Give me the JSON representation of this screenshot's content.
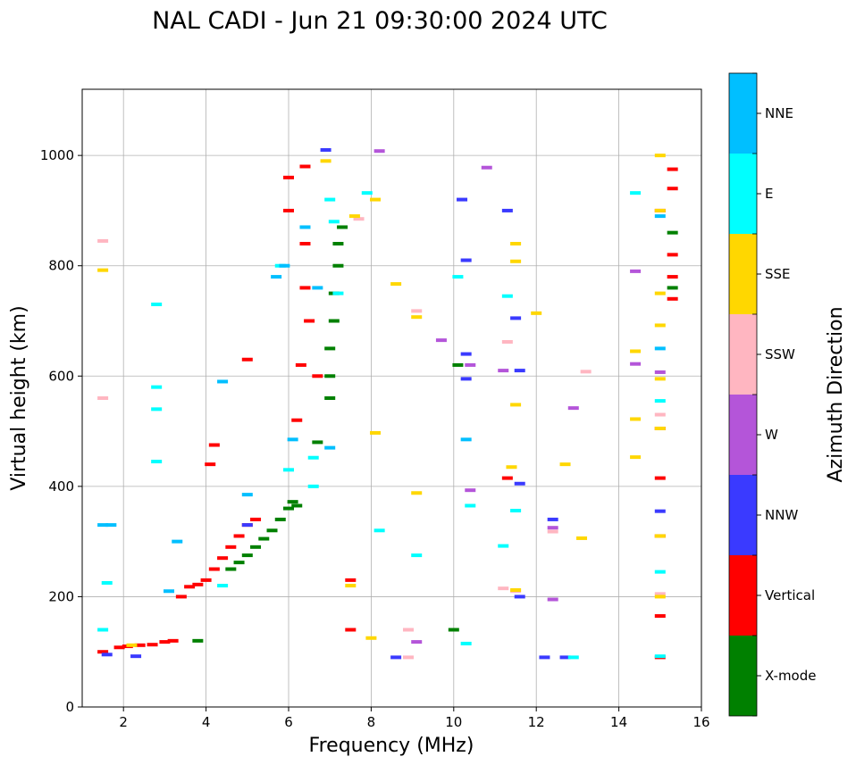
{
  "title": "NAL CADI - Jun 21 09:30:00 2024 UTC",
  "chart_data": {
    "type": "scatter",
    "title": "NAL CADI - Jun 21 09:30:00 2024 UTC",
    "xlabel": "Frequency (MHz)",
    "ylabel": "Virtual height (km)",
    "xlim": [
      1,
      16
    ],
    "ylim": [
      0,
      1120
    ],
    "xticks": [
      2,
      4,
      6,
      8,
      10,
      12,
      14,
      16
    ],
    "yticks": [
      0,
      200,
      400,
      600,
      800,
      1000
    ],
    "grid": true,
    "colorbar": {
      "label": "Azimuth Direction",
      "categories": [
        {
          "name": "X-mode",
          "color": "#008000"
        },
        {
          "name": "Vertical",
          "color": "#ff0000"
        },
        {
          "name": "NNW",
          "color": "#3a3aff"
        },
        {
          "name": "W",
          "color": "#b455d9"
        },
        {
          "name": "SSW",
          "color": "#ffb6c1"
        },
        {
          "name": "SSE",
          "color": "#ffd700"
        },
        {
          "name": "E",
          "color": "#00ffff"
        },
        {
          "name": "NNE",
          "color": "#00bfff"
        }
      ]
    },
    "series": [
      {
        "name": "X-mode",
        "points": [
          [
            4.6,
            250
          ],
          [
            4.8,
            262
          ],
          [
            5.0,
            275
          ],
          [
            5.2,
            290
          ],
          [
            5.4,
            305
          ],
          [
            5.6,
            320
          ],
          [
            5.8,
            340
          ],
          [
            6.0,
            360
          ],
          [
            6.1,
            372
          ],
          [
            6.2,
            365
          ],
          [
            6.7,
            480
          ],
          [
            7.0,
            560
          ],
          [
            7.0,
            600
          ],
          [
            7.0,
            650
          ],
          [
            7.1,
            700
          ],
          [
            7.1,
            750
          ],
          [
            7.2,
            800
          ],
          [
            7.2,
            840
          ],
          [
            7.3,
            870
          ],
          [
            3.8,
            120
          ],
          [
            10.0,
            140
          ],
          [
            10.1,
            620
          ],
          [
            15.3,
            760
          ],
          [
            15.3,
            860
          ]
        ]
      },
      {
        "name": "Vertical",
        "points": [
          [
            1.5,
            100
          ],
          [
            1.9,
            108
          ],
          [
            2.1,
            110
          ],
          [
            2.4,
            112
          ],
          [
            2.7,
            113
          ],
          [
            3.0,
            118
          ],
          [
            3.2,
            120
          ],
          [
            3.4,
            200
          ],
          [
            3.6,
            218
          ],
          [
            3.8,
            222
          ],
          [
            4.0,
            230
          ],
          [
            4.2,
            250
          ],
          [
            4.4,
            270
          ],
          [
            4.6,
            290
          ],
          [
            4.8,
            310
          ],
          [
            5.0,
            330
          ],
          [
            5.2,
            340
          ],
          [
            4.1,
            440
          ],
          [
            4.2,
            475
          ],
          [
            5.0,
            630
          ],
          [
            6.0,
            900
          ],
          [
            6.0,
            960
          ],
          [
            6.4,
            980
          ],
          [
            6.4,
            840
          ],
          [
            6.4,
            760
          ],
          [
            6.3,
            620
          ],
          [
            6.2,
            520
          ],
          [
            6.5,
            700
          ],
          [
            6.7,
            600
          ],
          [
            7.5,
            140
          ],
          [
            7.5,
            230
          ],
          [
            15.0,
            90
          ],
          [
            15.0,
            165
          ],
          [
            15.0,
            310
          ],
          [
            15.0,
            415
          ],
          [
            15.0,
            505
          ],
          [
            15.0,
            900
          ],
          [
            15.3,
            740
          ],
          [
            15.3,
            780
          ],
          [
            15.3,
            820
          ],
          [
            15.3,
            940
          ],
          [
            15.3,
            975
          ],
          [
            11.3,
            415
          ]
        ]
      },
      {
        "name": "NNW",
        "points": [
          [
            1.6,
            95
          ],
          [
            2.3,
            92
          ],
          [
            5.0,
            330
          ],
          [
            6.9,
            1010
          ],
          [
            10.2,
            920
          ],
          [
            10.3,
            810
          ],
          [
            10.3,
            640
          ],
          [
            10.3,
            595
          ],
          [
            11.3,
            900
          ],
          [
            11.5,
            705
          ],
          [
            11.6,
            610
          ],
          [
            11.6,
            405
          ],
          [
            11.6,
            200
          ],
          [
            12.2,
            90
          ],
          [
            12.4,
            340
          ],
          [
            12.7,
            90
          ],
          [
            8.6,
            90
          ],
          [
            15.0,
            355
          ]
        ]
      },
      {
        "name": "W",
        "points": [
          [
            8.2,
            1008
          ],
          [
            10.8,
            978
          ],
          [
            9.7,
            665
          ],
          [
            10.4,
            620
          ],
          [
            11.2,
            610
          ],
          [
            12.9,
            542
          ],
          [
            10.4,
            393
          ],
          [
            12.4,
            325
          ],
          [
            12.4,
            195
          ],
          [
            9.1,
            118
          ],
          [
            14.4,
            790
          ],
          [
            14.4,
            622
          ],
          [
            15.0,
            607
          ]
        ]
      },
      {
        "name": "SSW",
        "points": [
          [
            1.5,
            845
          ],
          [
            1.5,
            560
          ],
          [
            7.7,
            885
          ],
          [
            9.1,
            718
          ],
          [
            11.3,
            662
          ],
          [
            13.2,
            608
          ],
          [
            12.4,
            318
          ],
          [
            11.2,
            215
          ],
          [
            11.5,
            210
          ],
          [
            8.9,
            140
          ],
          [
            8.9,
            90
          ],
          [
            15.0,
            205
          ],
          [
            15.0,
            530
          ]
        ]
      },
      {
        "name": "SSE",
        "points": [
          [
            1.5,
            792
          ],
          [
            2.2,
            112
          ],
          [
            6.9,
            990
          ],
          [
            7.6,
            890
          ],
          [
            8.1,
            920
          ],
          [
            8.6,
            767
          ],
          [
            9.1,
            707
          ],
          [
            9.1,
            388
          ],
          [
            8.1,
            497
          ],
          [
            11.5,
            840
          ],
          [
            11.5,
            808
          ],
          [
            11.5,
            548
          ],
          [
            11.4,
            435
          ],
          [
            12.0,
            714
          ],
          [
            12.7,
            440
          ],
          [
            13.1,
            306
          ],
          [
            11.5,
            212
          ],
          [
            8.0,
            125
          ],
          [
            7.5,
            220
          ],
          [
            14.4,
            645
          ],
          [
            14.4,
            522
          ],
          [
            14.4,
            453
          ],
          [
            15.0,
            1000
          ],
          [
            15.0,
            900
          ],
          [
            15.0,
            750
          ],
          [
            15.0,
            692
          ],
          [
            15.0,
            595
          ],
          [
            15.0,
            505
          ],
          [
            15.0,
            310
          ],
          [
            15.0,
            200
          ]
        ]
      },
      {
        "name": "E",
        "points": [
          [
            1.5,
            140
          ],
          [
            1.6,
            225
          ],
          [
            2.8,
            730
          ],
          [
            2.8,
            580
          ],
          [
            2.8,
            540
          ],
          [
            2.8,
            445
          ],
          [
            4.4,
            220
          ],
          [
            5.8,
            800
          ],
          [
            6.0,
            430
          ],
          [
            6.6,
            400
          ],
          [
            6.6,
            452
          ],
          [
            7.2,
            750
          ],
          [
            7.1,
            880
          ],
          [
            7.0,
            920
          ],
          [
            7.9,
            932
          ],
          [
            8.2,
            320
          ],
          [
            9.1,
            275
          ],
          [
            10.1,
            780
          ],
          [
            10.4,
            365
          ],
          [
            11.2,
            292
          ],
          [
            11.3,
            745
          ],
          [
            11.5,
            356
          ],
          [
            12.9,
            90
          ],
          [
            10.3,
            115
          ],
          [
            14.4,
            932
          ],
          [
            15.0,
            555
          ],
          [
            15.0,
            245
          ],
          [
            15.0,
            92
          ]
        ]
      },
      {
        "name": "NNE",
        "points": [
          [
            1.5,
            330
          ],
          [
            1.7,
            330
          ],
          [
            3.3,
            300
          ],
          [
            3.1,
            210
          ],
          [
            4.4,
            590
          ],
          [
            5.0,
            385
          ],
          [
            5.7,
            780
          ],
          [
            5.9,
            800
          ],
          [
            6.1,
            485
          ],
          [
            6.4,
            870
          ],
          [
            6.7,
            760
          ],
          [
            7.0,
            470
          ],
          [
            10.3,
            485
          ],
          [
            15.0,
            650
          ],
          [
            15.0,
            890
          ]
        ]
      }
    ]
  }
}
